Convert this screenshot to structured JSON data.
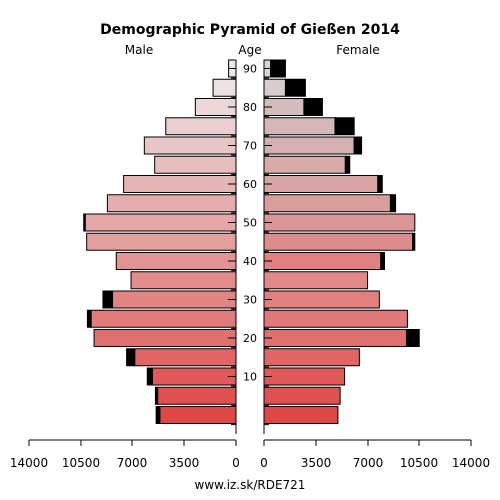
{
  "chart_data": {
    "type": "bar",
    "subtype": "population-pyramid",
    "title": "Demographic Pyramid of Gießen 2014",
    "left_label": "Male",
    "center_label": "Age",
    "right_label": "Female",
    "source": "www.iz.sk/RDE721",
    "age_groups": [
      "0-4",
      "5-9",
      "10-14",
      "15-19",
      "20-24",
      "25-29",
      "30-34",
      "35-39",
      "40-44",
      "45-49",
      "50-54",
      "55-59",
      "60-64",
      "65-69",
      "70-74",
      "75-79",
      "80-84",
      "85-89",
      "90+"
    ],
    "age_tick_labels": [
      "10",
      "20",
      "30",
      "40",
      "50",
      "60",
      "70",
      "80",
      "90"
    ],
    "x_ticks": [
      "14000",
      "10500",
      "7000",
      "3500",
      "0",
      "3500",
      "7000",
      "10500",
      "14000"
    ],
    "xlim": [
      0,
      14000
    ],
    "series": [
      {
        "name": "Male",
        "values": [
          5150,
          5300,
          5650,
          6850,
          9600,
          9800,
          8350,
          7100,
          8100,
          10100,
          10200,
          8700,
          7600,
          5500,
          6200,
          4750,
          2750,
          1550,
          500
        ],
        "surplus": [
          250,
          150,
          350,
          550,
          0,
          250,
          650,
          0,
          0,
          0,
          100,
          0,
          0,
          0,
          0,
          0,
          0,
          0,
          0
        ]
      },
      {
        "name": "Female",
        "values": [
          5000,
          5150,
          5450,
          6450,
          9650,
          9700,
          7800,
          7000,
          7900,
          10050,
          10200,
          8550,
          7700,
          5500,
          6100,
          4800,
          2700,
          1450,
          450
        ],
        "surplus": [
          0,
          0,
          0,
          0,
          850,
          0,
          0,
          0,
          250,
          150,
          0,
          350,
          300,
          300,
          500,
          1300,
          1250,
          1350,
          1000
        ]
      }
    ],
    "male_colors": [
      "#e04848",
      "#e05050",
      "#e05a5a",
      "#e06666",
      "#e07070",
      "#e27a7a",
      "#e38484",
      "#e28c8c",
      "#e29494",
      "#e39e9e",
      "#e4a6a6",
      "#e4adad",
      "#e6b6b6",
      "#e6bebe",
      "#e8c6c6",
      "#e9cfcf",
      "#ebd7d7",
      "#ede1e1",
      "#efe9e9"
    ],
    "female_colors": [
      "#e04848",
      "#e05050",
      "#e05a5a",
      "#e06666",
      "#e07070",
      "#e07878",
      "#e28080",
      "#e28888",
      "#e08080",
      "#dc8c8c",
      "#da9696",
      "#d89e9e",
      "#d8a4a4",
      "#d8aaaa",
      "#d6b0b0",
      "#d4b8b8",
      "#d2bcbc",
      "#d8cccc",
      "#dcd4d4"
    ],
    "surplus_color": "#000000"
  }
}
